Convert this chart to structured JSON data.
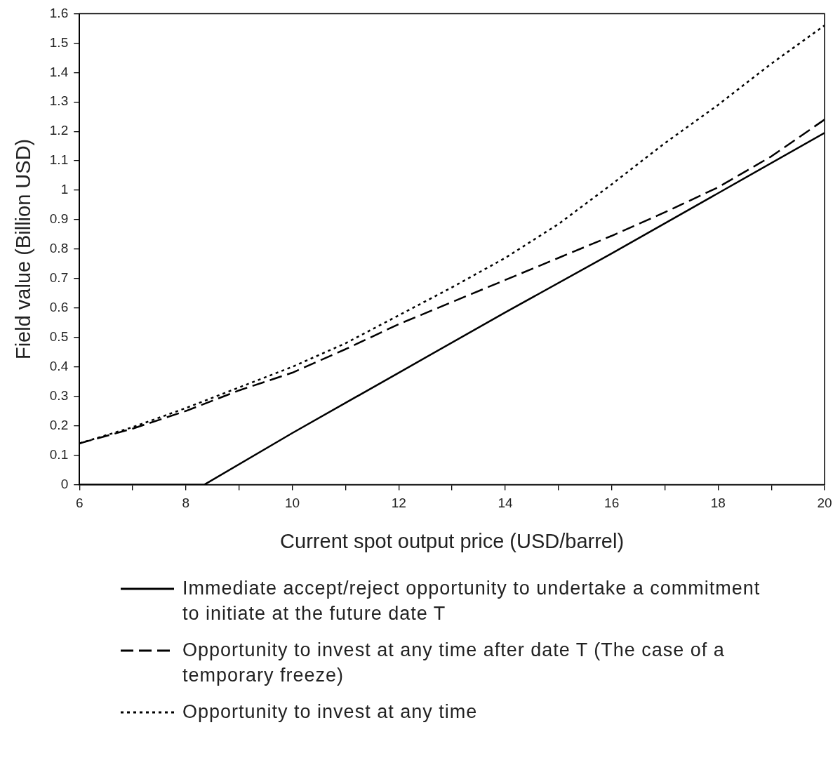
{
  "chart_data": {
    "type": "line",
    "xlabel": "Current spot output price (USD/barrel)",
    "ylabel": "Field value (Billion USD)",
    "xlim": [
      6,
      20
    ],
    "xticks": [
      6,
      {
        "value": 7,
        "label": null
      },
      8,
      {
        "value": 9,
        "label": null
      },
      10,
      {
        "value": 11,
        "label": null
      },
      12,
      {
        "value": 13,
        "label": null
      },
      14,
      {
        "value": 15,
        "label": null
      },
      16,
      {
        "value": 17,
        "label": null
      },
      18,
      {
        "value": 19,
        "label": null
      },
      20
    ],
    "ylim": [
      0,
      1.6
    ],
    "yticks": [
      0,
      0.1,
      0.2,
      0.3,
      0.4,
      0.5,
      0.6,
      0.7,
      0.8,
      0.9,
      1,
      1.1,
      1.2,
      1.3,
      1.4,
      1.5,
      1.6
    ],
    "grid": false,
    "legend": "bottom",
    "marker": "none",
    "series": [
      {
        "name": "Immediate accept/reject opportunity to undertake a commitment to initiate at the future date T",
        "color": "#000000",
        "line_style": "solid",
        "x": [
          6,
          8.35,
          10,
          12,
          14,
          16,
          18,
          20
        ],
        "values": [
          0,
          0,
          0.175,
          0.38,
          0.585,
          0.785,
          0.99,
          1.195
        ]
      },
      {
        "name": "Opportunity to invest at any time after date T (The case of a temporary freeze)",
        "color": "#000000",
        "line_style": "dashed",
        "x": [
          6,
          7,
          8,
          9,
          10,
          11,
          12,
          13,
          14,
          15,
          16,
          17,
          18,
          19,
          20
        ],
        "values": [
          0.14,
          0.19,
          0.25,
          0.32,
          0.38,
          0.46,
          0.545,
          0.62,
          0.695,
          0.77,
          0.845,
          0.925,
          1.01,
          1.115,
          1.24
        ]
      },
      {
        "name": "Opportunity to invest at any time",
        "color": "#000000",
        "line_style": "dotted",
        "x": [
          6,
          7,
          8,
          9,
          10,
          11,
          12,
          13,
          14,
          15,
          16,
          17,
          18,
          19,
          20
        ],
        "values": [
          0.14,
          0.195,
          0.26,
          0.33,
          0.4,
          0.48,
          0.575,
          0.67,
          0.77,
          0.885,
          1.02,
          1.16,
          1.29,
          1.43,
          1.56
        ]
      }
    ]
  }
}
